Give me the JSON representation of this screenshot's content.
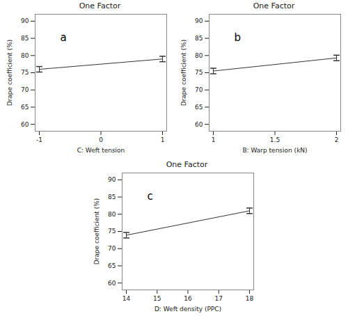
{
  "chart_data": [
    {
      "type": "line",
      "title": "One Factor",
      "annotation": "a",
      "x_label": "C: Weft tension",
      "y_label": "Drape coefficient (%)",
      "x": [
        -1,
        1
      ],
      "values": [
        76.0,
        79.0
      ],
      "errors": [
        0.8,
        0.8
      ],
      "xlim": [
        -1,
        1
      ],
      "xticks": [
        -1,
        0,
        1
      ],
      "ylim": [
        58,
        92
      ],
      "yticks": [
        60,
        65,
        70,
        75,
        80,
        85,
        90
      ],
      "color": "#333333"
    },
    {
      "type": "line",
      "title": "One Factor",
      "annotation": "b",
      "x_label": "B: Warp tension (kN)",
      "y_label": "Drape coefficient (%)",
      "x": [
        1,
        2
      ],
      "values": [
        75.5,
        79.3
      ],
      "errors": [
        0.8,
        0.8
      ],
      "xlim": [
        1,
        2
      ],
      "xticks": [
        1,
        1.5,
        2
      ],
      "ylim": [
        58,
        92
      ],
      "yticks": [
        60,
        65,
        70,
        75,
        80,
        85,
        90
      ],
      "color": "#333333"
    },
    {
      "type": "line",
      "title": "One Factor",
      "annotation": "c",
      "x_label": "D: Weft density (PPC)",
      "y_label": "Drape coefficient (%)",
      "x": [
        14,
        18
      ],
      "values": [
        73.9,
        81.0
      ],
      "errors": [
        0.8,
        0.8
      ],
      "xlim": [
        14,
        18
      ],
      "xticks": [
        14,
        15,
        16,
        17,
        18
      ],
      "ylim": [
        58,
        92
      ],
      "yticks": [
        60,
        65,
        70,
        75,
        80,
        85,
        90
      ],
      "color": "#333333"
    }
  ]
}
